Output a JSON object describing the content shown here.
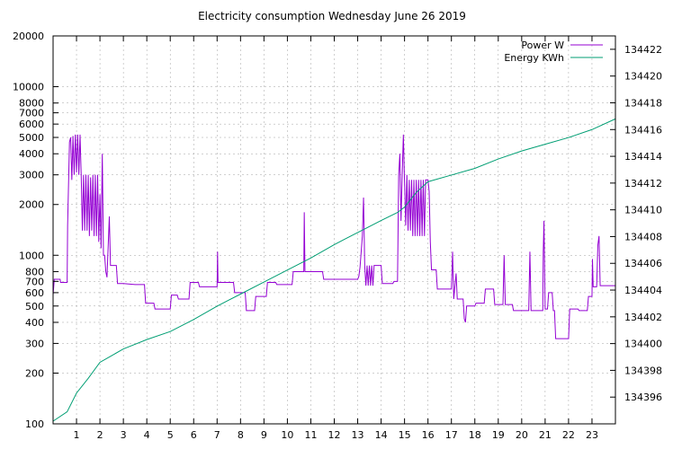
{
  "chart_data": {
    "type": "line",
    "title": "Electricity consumption Wednesday June 26 2019",
    "grid": true,
    "legend_position": "top-right",
    "x_axis": {
      "range": [
        0,
        24
      ],
      "ticks": [
        "1",
        "2",
        "3",
        "4",
        "5",
        "6",
        "7",
        "8",
        "9",
        "10",
        "11",
        "12",
        "13",
        "14",
        "15",
        "16",
        "17",
        "18",
        "19",
        "20",
        "21",
        "22",
        "23"
      ]
    },
    "y_axis_left": {
      "scale": "log",
      "range": [
        100,
        20000
      ],
      "ticks": [
        "100",
        "200",
        "300",
        "400",
        "500",
        "600",
        "700",
        "800",
        "1000",
        "2000",
        "3000",
        "4000",
        "5000",
        "6000",
        "7000",
        "8000",
        "10000",
        "20000"
      ]
    },
    "y_axis_right": {
      "scale": "linear",
      "range": [
        134394,
        134423
      ],
      "ticks": [
        "134396",
        "134398",
        "134400",
        "134402",
        "134404",
        "134406",
        "134408",
        "134410",
        "134412",
        "134414",
        "134416",
        "134418",
        "134420",
        "134422"
      ]
    },
    "series": [
      {
        "name": "Power W",
        "color": "#9400d3",
        "axis": "left",
        "points": [
          [
            0,
            580
          ],
          [
            0.05,
            720
          ],
          [
            0.3,
            720
          ],
          [
            0.32,
            690
          ],
          [
            0.6,
            690
          ],
          [
            0.62,
            1500
          ],
          [
            0.7,
            4700
          ],
          [
            0.75,
            5000
          ],
          [
            0.8,
            2800
          ],
          [
            0.85,
            5100
          ],
          [
            0.9,
            3000
          ],
          [
            0.95,
            5200
          ],
          [
            1.0,
            3100
          ],
          [
            1.05,
            5200
          ],
          [
            1.1,
            3000
          ],
          [
            1.15,
            5200
          ],
          [
            1.2,
            3000
          ],
          [
            1.25,
            1400
          ],
          [
            1.3,
            3000
          ],
          [
            1.35,
            1400
          ],
          [
            1.4,
            3000
          ],
          [
            1.45,
            1400
          ],
          [
            1.5,
            3000
          ],
          [
            1.55,
            1300
          ],
          [
            1.6,
            2900
          ],
          [
            1.65,
            1400
          ],
          [
            1.7,
            3000
          ],
          [
            1.75,
            1300
          ],
          [
            1.8,
            3000
          ],
          [
            1.85,
            1300
          ],
          [
            1.9,
            3000
          ],
          [
            1.95,
            1200
          ],
          [
            2.0,
            2300
          ],
          [
            2.05,
            1100
          ],
          [
            2.1,
            4000
          ],
          [
            2.15,
            1000
          ],
          [
            2.2,
            1000
          ],
          [
            2.25,
            800
          ],
          [
            2.3,
            740
          ],
          [
            2.4,
            1700
          ],
          [
            2.45,
            870
          ],
          [
            2.7,
            870
          ],
          [
            2.75,
            680
          ],
          [
            3.0,
            680
          ],
          [
            3.5,
            670
          ],
          [
            3.9,
            670
          ],
          [
            3.95,
            520
          ],
          [
            4.3,
            520
          ],
          [
            4.35,
            480
          ],
          [
            5.0,
            480
          ],
          [
            5.05,
            580
          ],
          [
            5.3,
            580
          ],
          [
            5.35,
            550
          ],
          [
            5.8,
            550
          ],
          [
            5.85,
            690
          ],
          [
            6.2,
            690
          ],
          [
            6.25,
            650
          ],
          [
            7.0,
            650
          ],
          [
            7.02,
            1050
          ],
          [
            7.04,
            690
          ],
          [
            7.7,
            690
          ],
          [
            7.75,
            600
          ],
          [
            8.2,
            600
          ],
          [
            8.25,
            470
          ],
          [
            8.6,
            470
          ],
          [
            8.65,
            570
          ],
          [
            9.1,
            570
          ],
          [
            9.15,
            690
          ],
          [
            9.5,
            690
          ],
          [
            9.55,
            670
          ],
          [
            10.2,
            670
          ],
          [
            10.25,
            800
          ],
          [
            10.7,
            800
          ],
          [
            10.72,
            1800
          ],
          [
            10.75,
            800
          ],
          [
            11.5,
            800
          ],
          [
            11.55,
            720
          ],
          [
            12.0,
            720
          ],
          [
            13.0,
            720
          ],
          [
            13.05,
            750
          ],
          [
            13.1,
            850
          ],
          [
            13.2,
            1300
          ],
          [
            13.25,
            2200
          ],
          [
            13.3,
            870
          ],
          [
            13.35,
            660
          ],
          [
            13.4,
            870
          ],
          [
            13.45,
            660
          ],
          [
            13.5,
            870
          ],
          [
            13.55,
            660
          ],
          [
            13.6,
            870
          ],
          [
            13.65,
            660
          ],
          [
            13.7,
            870
          ],
          [
            14.0,
            870
          ],
          [
            14.05,
            680
          ],
          [
            14.5,
            680
          ],
          [
            14.55,
            700
          ],
          [
            14.7,
            700
          ],
          [
            14.75,
            3000
          ],
          [
            14.8,
            4000
          ],
          [
            14.85,
            1600
          ],
          [
            14.9,
            3000
          ],
          [
            14.95,
            5200
          ],
          [
            15.0,
            2700
          ],
          [
            15.05,
            1500
          ],
          [
            15.1,
            3000
          ],
          [
            15.15,
            1400
          ],
          [
            15.2,
            2800
          ],
          [
            15.25,
            1400
          ],
          [
            15.3,
            2800
          ],
          [
            15.35,
            1300
          ],
          [
            15.4,
            2800
          ],
          [
            15.45,
            1300
          ],
          [
            15.5,
            2800
          ],
          [
            15.55,
            1300
          ],
          [
            15.6,
            2800
          ],
          [
            15.65,
            1300
          ],
          [
            15.7,
            2800
          ],
          [
            15.75,
            1300
          ],
          [
            15.8,
            2800
          ],
          [
            15.85,
            1300
          ],
          [
            15.9,
            2800
          ],
          [
            16.0,
            2800
          ],
          [
            16.05,
            2400
          ],
          [
            16.1,
            1200
          ],
          [
            16.15,
            820
          ],
          [
            16.35,
            820
          ],
          [
            16.4,
            630
          ],
          [
            17.0,
            630
          ],
          [
            17.05,
            1050
          ],
          [
            17.1,
            550
          ],
          [
            17.2,
            780
          ],
          [
            17.25,
            550
          ],
          [
            17.5,
            550
          ],
          [
            17.55,
            420
          ],
          [
            17.6,
            400
          ],
          [
            17.65,
            500
          ],
          [
            18.0,
            500
          ],
          [
            18.05,
            520
          ],
          [
            18.4,
            520
          ],
          [
            18.45,
            630
          ],
          [
            18.8,
            630
          ],
          [
            18.85,
            510
          ],
          [
            19.2,
            510
          ],
          [
            19.25,
            1000
          ],
          [
            19.3,
            510
          ],
          [
            19.6,
            510
          ],
          [
            19.65,
            470
          ],
          [
            20.3,
            470
          ],
          [
            20.35,
            1050
          ],
          [
            20.4,
            470
          ],
          [
            20.9,
            470
          ],
          [
            20.92,
            1050
          ],
          [
            20.95,
            1600
          ],
          [
            21.0,
            480
          ],
          [
            21.1,
            480
          ],
          [
            21.15,
            600
          ],
          [
            21.3,
            600
          ],
          [
            21.35,
            470
          ],
          [
            21.4,
            470
          ],
          [
            21.45,
            320
          ],
          [
            22.0,
            320
          ],
          [
            22.05,
            480
          ],
          [
            22.4,
            480
          ],
          [
            22.45,
            470
          ],
          [
            22.8,
            470
          ],
          [
            22.85,
            570
          ],
          [
            23.0,
            570
          ],
          [
            23.02,
            950
          ],
          [
            23.05,
            650
          ],
          [
            23.2,
            650
          ],
          [
            23.25,
            1150
          ],
          [
            23.3,
            1300
          ],
          [
            23.35,
            660
          ],
          [
            24.0,
            660
          ]
        ]
      },
      {
        "name": "Energy KWh",
        "color": "#009e73",
        "axis": "right",
        "points": [
          [
            0,
            134394.2
          ],
          [
            0.6,
            134394.9
          ],
          [
            1.0,
            134396.3
          ],
          [
            1.5,
            134397.4
          ],
          [
            2.0,
            134398.6
          ],
          [
            2.5,
            134399.1
          ],
          [
            3.0,
            134399.6
          ],
          [
            4.0,
            134400.3
          ],
          [
            5.0,
            134400.9
          ],
          [
            6.0,
            134401.8
          ],
          [
            7.0,
            134402.8
          ],
          [
            8.0,
            134403.7
          ],
          [
            9.0,
            134404.6
          ],
          [
            10.0,
            134405.5
          ],
          [
            11.0,
            134406.4
          ],
          [
            12.0,
            134407.4
          ],
          [
            13.0,
            134408.3
          ],
          [
            14.0,
            134409.2
          ],
          [
            14.7,
            134409.8
          ],
          [
            15.0,
            134410.2
          ],
          [
            15.5,
            134411.3
          ],
          [
            16.0,
            134412.1
          ],
          [
            17.0,
            134412.6
          ],
          [
            18.0,
            134413.1
          ],
          [
            19.0,
            134413.8
          ],
          [
            20.0,
            134414.4
          ],
          [
            21.0,
            134414.9
          ],
          [
            22.0,
            134415.4
          ],
          [
            23.0,
            134416.0
          ],
          [
            24.0,
            134416.8
          ]
        ]
      }
    ]
  }
}
